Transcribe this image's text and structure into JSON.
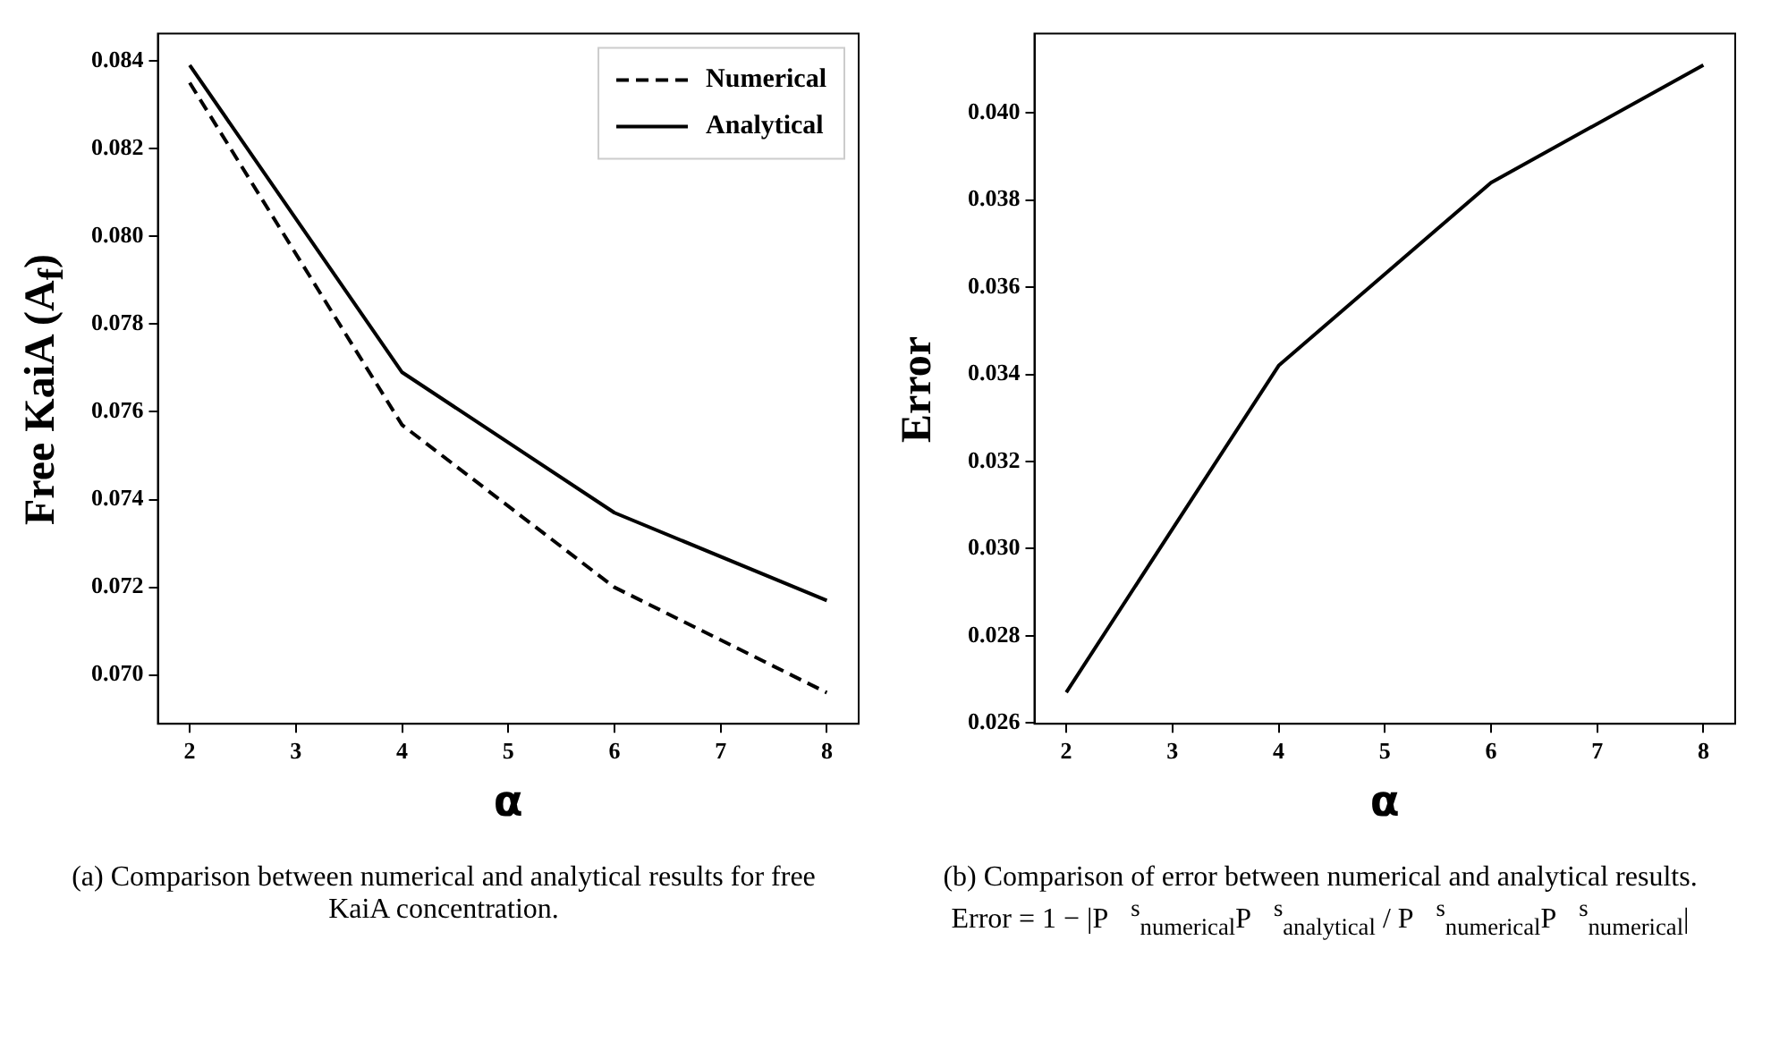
{
  "chart_data": [
    {
      "type": "line",
      "x": [
        2,
        4,
        6,
        8
      ],
      "xlabel": "α",
      "ylabel": "Free KaiA (A$_{f}$)",
      "xlim": [
        1.7,
        8.3
      ],
      "xticks": [
        2,
        3,
        4,
        5,
        6,
        7,
        8
      ],
      "ylim": [
        0.06889,
        0.08462
      ],
      "yticks": [
        {
          "value": 0.07,
          "label": "0.070"
        },
        0.072,
        0.074,
        0.076,
        0.078,
        {
          "value": 0.08,
          "label": "0.080"
        },
        0.082,
        0.084
      ],
      "grid": false,
      "legend": "top right",
      "series": [
        {
          "name": "Numerical",
          "color": "#000000",
          "line_style": "dashed",
          "values": [
            0.0835,
            0.0757,
            0.072,
            0.0696
          ]
        },
        {
          "name": "Analytical",
          "color": "#000000",
          "line_style": "solid",
          "values": [
            0.0839,
            0.0769,
            0.0737,
            0.0717
          ]
        }
      ],
      "annotations": [
        "(a) Comparison between numerical and analytical results for free KaiA concentration."
      ]
    },
    {
      "type": "line",
      "x": [
        2,
        4,
        6,
        8
      ],
      "xlabel": "α",
      "ylabel": "Error",
      "xlim": [
        1.7,
        8.3
      ],
      "xticks": [
        2,
        3,
        4,
        5,
        6,
        7,
        8
      ],
      "ylim": [
        0.02598,
        0.04182
      ],
      "yticks": [
        0.026,
        0.028,
        {
          "value": 0.03,
          "label": "0.030"
        },
        0.032,
        0.034,
        0.036,
        0.038,
        {
          "value": 0.04,
          "label": "0.040"
        }
      ],
      "grid": false,
      "series": [
        {
          "color": "#000000",
          "line_style": "solid",
          "values": [
            0.0267,
            0.0342,
            0.0384,
            0.0411
          ]
        }
      ],
      "annotations": [
        "(b) Comparison of error between numerical and analytical results. Error = 1 − |P⃗$^{s}$$_{numerical}$P⃗$^{s}$$_{analytical}$ / P⃗$^{s}$$_{numerical}$P⃗$^{s}$$_{numerical}$|"
      ]
    }
  ]
}
